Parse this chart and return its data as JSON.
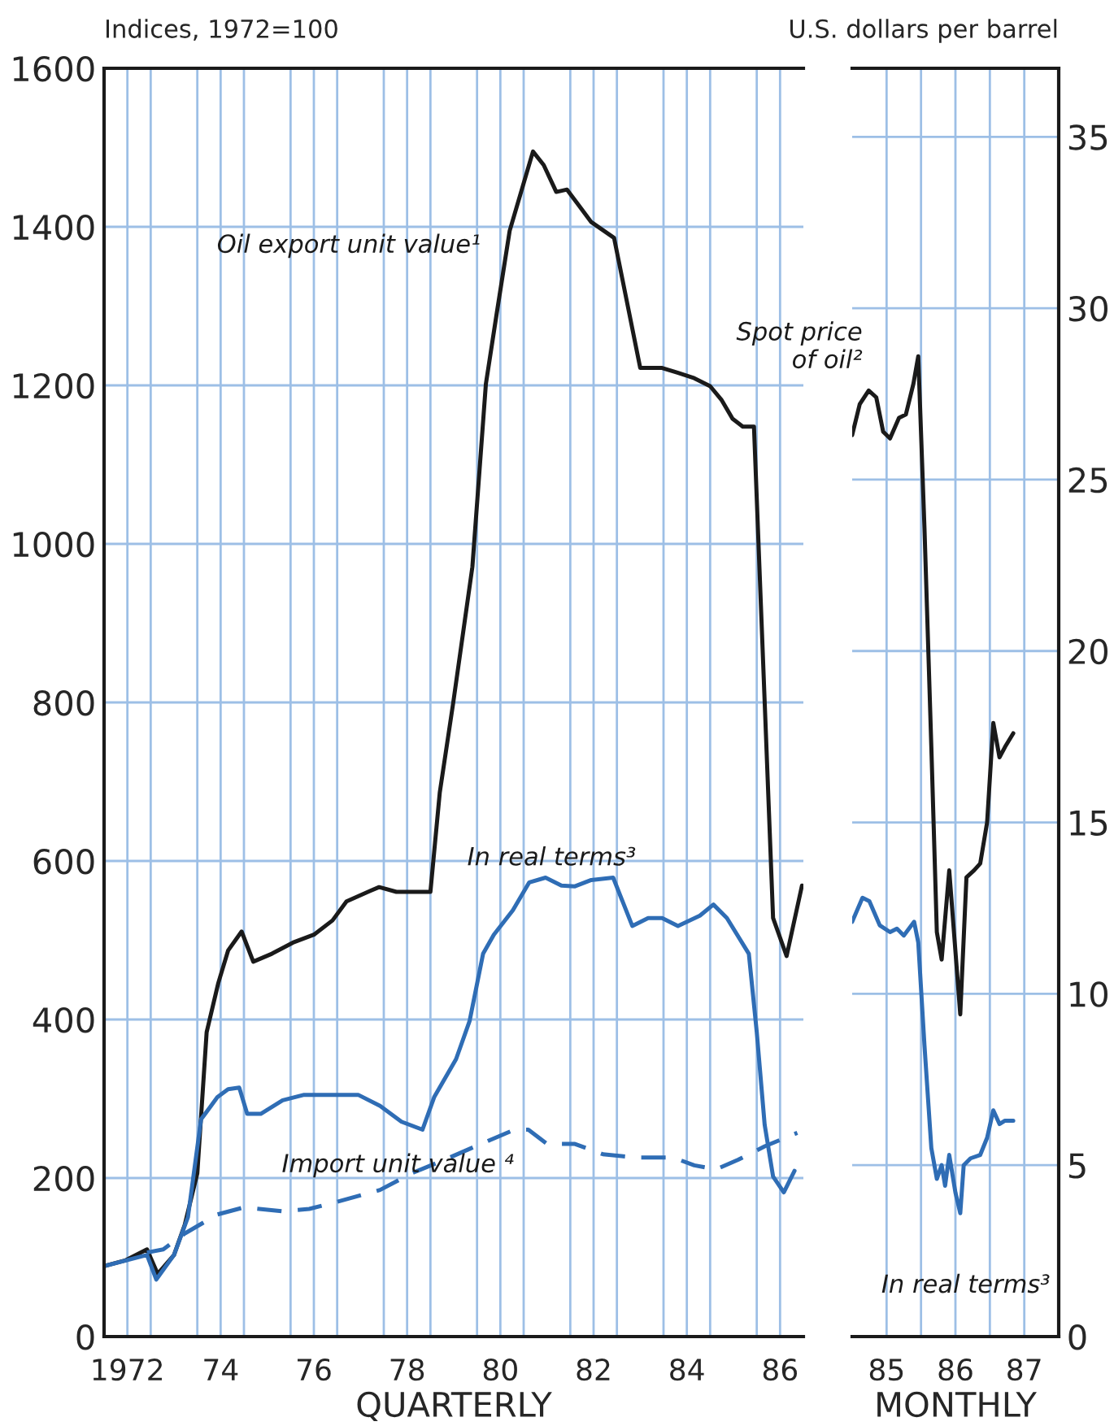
{
  "chart_data": [
    {
      "type": "line",
      "ylabel": "Indices, 1972=100",
      "xlabel": "QUARTERLY",
      "xlim": [
        1971.5,
        1986.5
      ],
      "ylim": [
        0,
        1600
      ],
      "yticks": [
        0,
        200,
        400,
        600,
        800,
        1000,
        1200,
        1400,
        1600
      ],
      "xticks": [
        {
          "value": 1972,
          "label": "1972"
        },
        {
          "value": 1972.5,
          "label": null
        },
        {
          "value": 1973.5,
          "label": null
        },
        {
          "value": 1974,
          "label": "74"
        },
        {
          "value": 1974.5,
          "label": null
        },
        {
          "value": 1975.5,
          "label": null
        },
        {
          "value": 1976,
          "label": "76"
        },
        {
          "value": 1976.5,
          "label": null
        },
        {
          "value": 1977.5,
          "label": null
        },
        {
          "value": 1978,
          "label": "78"
        },
        {
          "value": 1978.5,
          "label": null
        },
        {
          "value": 1979.5,
          "label": null
        },
        {
          "value": 1980,
          "label": "80"
        },
        {
          "value": 1980.5,
          "label": null
        },
        {
          "value": 1981.5,
          "label": null
        },
        {
          "value": 1982,
          "label": "82"
        },
        {
          "value": 1982.5,
          "label": null
        },
        {
          "value": 1983.5,
          "label": null
        },
        {
          "value": 1984,
          "label": "84"
        },
        {
          "value": 1984.5,
          "label": null
        },
        {
          "value": 1985.5,
          "label": null
        },
        {
          "value": 1986,
          "label": "86"
        }
      ],
      "grid": true,
      "marker": "none",
      "series": [
        {
          "name": "Oil export unit value¹",
          "color": "#1a1a1a",
          "line_style": "solid",
          "x": [
            1971.5,
            1971.95,
            1972.42,
            1972.65,
            1973.0,
            1973.23,
            1973.5,
            1973.7,
            1973.95,
            1974.16,
            1974.45,
            1974.7,
            1975.1,
            1975.55,
            1976.0,
            1976.4,
            1976.7,
            1977.2,
            1977.4,
            1977.77,
            1978.5,
            1978.7,
            1978.99,
            1979.4,
            1979.69,
            1979.92,
            1980.2,
            1980.7,
            1980.93,
            1981.2,
            1981.43,
            1981.95,
            1982.44,
            1983.0,
            1983.47,
            1983.8,
            1984.16,
            1984.5,
            1984.74,
            1984.98,
            1985.2,
            1985.44,
            1985.85,
            1986.14,
            1986.47
          ],
          "values": [
            89,
            96,
            110,
            79,
            103,
            141,
            206,
            384,
            446,
            487,
            511,
            473,
            483,
            497,
            507,
            525,
            549,
            562,
            567,
            561,
            561,
            686,
            800,
            971,
            1202,
            1290,
            1395,
            1495,
            1478,
            1444,
            1447,
            1406,
            1386,
            1222,
            1222,
            1216,
            1209,
            1199,
            1182,
            1158,
            1148,
            1148,
            528,
            480,
            569
          ]
        },
        {
          "name": "In real terms³",
          "color": "#2f6db5",
          "line_style": "solid",
          "x": [
            1971.5,
            1972.42,
            1972.62,
            1973.0,
            1973.3,
            1973.58,
            1973.93,
            1974.16,
            1974.4,
            1974.57,
            1974.86,
            1975.33,
            1975.79,
            1976.5,
            1976.95,
            1977.42,
            1977.88,
            1978.33,
            1978.58,
            1979.05,
            1979.34,
            1979.63,
            1979.86,
            1980.27,
            1980.62,
            1980.97,
            1981.31,
            1981.6,
            1981.95,
            1982.42,
            1982.83,
            1983.17,
            1983.47,
            1983.81,
            1984.28,
            1984.57,
            1984.86,
            1985.33,
            1985.5,
            1985.67,
            1985.85,
            1986.08,
            1986.31
          ],
          "values": [
            89,
            103,
            72,
            103,
            151,
            274,
            302,
            312,
            314,
            281,
            281,
            298,
            305,
            305,
            305,
            291,
            271,
            261,
            302,
            350,
            398,
            483,
            507,
            538,
            573,
            579,
            569,
            568,
            576,
            579,
            518,
            528,
            528,
            518,
            531,
            545,
            528,
            483,
            384,
            267,
            202,
            182,
            209
          ]
        },
        {
          "name": "Import unit value ⁴",
          "color": "#2f6db5",
          "line_style": "dashed",
          "x": [
            1972.42,
            1972.77,
            1973.23,
            1973.93,
            1974.5,
            1975.33,
            1975.9,
            1976.5,
            1977.42,
            1978.1,
            1978.8,
            1979.74,
            1980.3,
            1980.6,
            1981.0,
            1981.6,
            1982.2,
            1982.9,
            1983.7,
            1984.16,
            1984.63,
            1985.1,
            1985.67,
            1986.37
          ],
          "values": [
            106,
            110,
            130,
            154,
            163,
            158,
            161,
            170,
            185,
            206,
            223,
            247,
            261,
            261,
            243,
            243,
            230,
            226,
            226,
            216,
            211,
            223,
            240,
            257
          ]
        }
      ]
    },
    {
      "type": "line",
      "ylabel": "U.S. dollars per barrel",
      "xlabel": "MONTHLY",
      "xlim": [
        1984.5,
        1987.5
      ],
      "ylim": [
        0,
        37
      ],
      "yticks": [
        0,
        5,
        10,
        15,
        20,
        25,
        30,
        35
      ],
      "xticks": [
        {
          "value": 1985,
          "label": "85"
        },
        {
          "value": 1985.5,
          "label": null
        },
        {
          "value": 1986,
          "label": "86"
        },
        {
          "value": 1986.5,
          "label": null
        },
        {
          "value": 1987,
          "label": "87"
        }
      ],
      "grid": true,
      "marker": "none",
      "series": [
        {
          "name": "Spot price\nof oil²",
          "color": "#1a1a1a",
          "line_style": "solid",
          "x": [
            1984.5,
            1984.61,
            1984.74,
            1984.85,
            1984.95,
            1985.05,
            1985.18,
            1985.28,
            1985.39,
            1985.46,
            1985.55,
            1985.65,
            1985.73,
            1985.8,
            1985.91,
            1985.99,
            1986.07,
            1986.16,
            1986.27,
            1986.36,
            1986.46,
            1986.55,
            1986.64,
            1986.72,
            1986.84
          ],
          "values": [
            26.3,
            27.2,
            27.6,
            27.4,
            26.4,
            26.2,
            26.8,
            26.9,
            27.8,
            28.6,
            23.6,
            17.2,
            11.8,
            11.0,
            13.6,
            11.5,
            9.4,
            13.4,
            13.6,
            13.8,
            15.0,
            17.9,
            16.9,
            17.2,
            17.6
          ]
        },
        {
          "name": "In real terms³",
          "color": "#2f6db5",
          "line_style": "solid",
          "x": [
            1984.5,
            1984.65,
            1984.75,
            1984.9,
            1985.05,
            1985.15,
            1985.25,
            1985.4,
            1985.46,
            1985.55,
            1985.65,
            1985.73,
            1985.8,
            1985.85,
            1985.91,
            1986.0,
            1986.07,
            1986.12,
            1986.22,
            1986.36,
            1986.46,
            1986.55,
            1986.64,
            1986.72,
            1986.84
          ],
          "values": [
            12.1,
            12.8,
            12.7,
            12.0,
            11.8,
            11.9,
            11.7,
            12.1,
            11.5,
            8.5,
            5.5,
            4.6,
            5.0,
            4.4,
            5.3,
            4.2,
            3.6,
            5.0,
            5.2,
            5.3,
            5.8,
            6.6,
            6.2,
            6.3,
            6.3
          ]
        }
      ]
    }
  ]
}
